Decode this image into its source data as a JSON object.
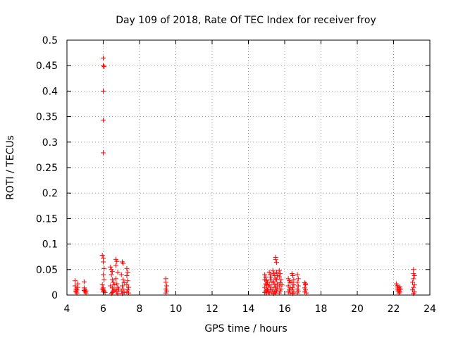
{
  "chart_data": {
    "type": "scatter",
    "title": "Day 109 of 2018, Rate Of TEC Index for receiver froy",
    "xlabel": "GPS time / hours",
    "ylabel": "ROTI / TECUs",
    "xlim": [
      4,
      24
    ],
    "ylim": [
      0,
      0.5
    ],
    "xticks": [
      4,
      6,
      8,
      10,
      12,
      14,
      16,
      18,
      20,
      22,
      24
    ],
    "xtick_labels": [
      "4",
      "6",
      "8",
      "10",
      "12",
      "14",
      "16",
      "18",
      "20",
      "22",
      "24"
    ],
    "yticks": [
      0,
      0.05,
      0.1,
      0.15,
      0.2,
      0.25,
      0.3,
      0.35,
      0.4,
      0.45,
      0.5
    ],
    "ytick_labels": [
      "0",
      "0.05",
      "0.1",
      "0.15",
      "0.2",
      "0.25",
      "0.3",
      "0.35",
      "0.4",
      "0.45",
      "0.5"
    ],
    "grid": true,
    "marker": "+",
    "color": "#ff0000",
    "series": [
      {
        "name": "ROTI",
        "points": [
          [
            4.45,
            0.028
          ],
          [
            4.45,
            0.018
          ],
          [
            4.5,
            0.012
          ],
          [
            4.5,
            0.006
          ],
          [
            4.55,
            0.01
          ],
          [
            4.55,
            0.004
          ],
          [
            4.6,
            0.015
          ],
          [
            4.6,
            0.022
          ],
          [
            4.5,
            0.008
          ],
          [
            4.95,
            0.026
          ],
          [
            4.95,
            0.014
          ],
          [
            5.0,
            0.01
          ],
          [
            5.0,
            0.006
          ],
          [
            5.05,
            0.008
          ],
          [
            5.05,
            0.004
          ],
          [
            4.95,
            0.009
          ],
          [
            6.0,
            0.465
          ],
          [
            6.0,
            0.45
          ],
          [
            6.05,
            0.448
          ],
          [
            6.0,
            0.4
          ],
          [
            6.0,
            0.343
          ],
          [
            6.0,
            0.279
          ],
          [
            5.95,
            0.078
          ],
          [
            6.0,
            0.072
          ],
          [
            6.0,
            0.065
          ],
          [
            6.05,
            0.052
          ],
          [
            6.0,
            0.04
          ],
          [
            6.05,
            0.03
          ],
          [
            5.95,
            0.02
          ],
          [
            6.0,
            0.014
          ],
          [
            6.0,
            0.01
          ],
          [
            6.05,
            0.008
          ],
          [
            6.1,
            0.005
          ],
          [
            5.95,
            0.012
          ],
          [
            6.0,
            0.006
          ],
          [
            6.4,
            0.055
          ],
          [
            6.45,
            0.05
          ],
          [
            6.5,
            0.046
          ],
          [
            6.45,
            0.04
          ],
          [
            6.5,
            0.03
          ],
          [
            6.55,
            0.025
          ],
          [
            6.4,
            0.018
          ],
          [
            6.5,
            0.014
          ],
          [
            6.6,
            0.01
          ],
          [
            6.55,
            0.008
          ],
          [
            6.5,
            0.005
          ],
          [
            6.45,
            0.003
          ],
          [
            6.6,
            0.02
          ],
          [
            6.7,
            0.07
          ],
          [
            6.75,
            0.066
          ],
          [
            6.7,
            0.058
          ],
          [
            6.8,
            0.045
          ],
          [
            6.7,
            0.032
          ],
          [
            6.75,
            0.022
          ],
          [
            6.8,
            0.015
          ],
          [
            6.7,
            0.01
          ],
          [
            6.75,
            0.006
          ],
          [
            6.8,
            0.003
          ],
          [
            6.85,
            0.012
          ],
          [
            7.05,
            0.065
          ],
          [
            7.1,
            0.062
          ],
          [
            7.0,
            0.04
          ],
          [
            7.1,
            0.03
          ],
          [
            7.15,
            0.024
          ],
          [
            7.05,
            0.018
          ],
          [
            7.1,
            0.012
          ],
          [
            7.0,
            0.008
          ],
          [
            7.15,
            0.005
          ],
          [
            7.05,
            0.003
          ],
          [
            7.3,
            0.052
          ],
          [
            7.35,
            0.045
          ],
          [
            7.3,
            0.038
          ],
          [
            7.35,
            0.028
          ],
          [
            7.3,
            0.02
          ],
          [
            7.4,
            0.015
          ],
          [
            7.35,
            0.01
          ],
          [
            7.3,
            0.006
          ],
          [
            7.4,
            0.004
          ],
          [
            9.45,
            0.032
          ],
          [
            9.45,
            0.025
          ],
          [
            9.5,
            0.018
          ],
          [
            9.45,
            0.012
          ],
          [
            9.5,
            0.008
          ],
          [
            9.45,
            0.004
          ],
          [
            14.9,
            0.04
          ],
          [
            14.95,
            0.035
          ],
          [
            14.9,
            0.03
          ],
          [
            15.0,
            0.028
          ],
          [
            15.05,
            0.025
          ],
          [
            14.95,
            0.022
          ],
          [
            15.0,
            0.02
          ],
          [
            15.1,
            0.018
          ],
          [
            14.9,
            0.015
          ],
          [
            15.0,
            0.012
          ],
          [
            15.05,
            0.01
          ],
          [
            14.95,
            0.008
          ],
          [
            15.1,
            0.006
          ],
          [
            15.0,
            0.004
          ],
          [
            14.9,
            0.005
          ],
          [
            15.15,
            0.045
          ],
          [
            15.2,
            0.04
          ],
          [
            15.25,
            0.035
          ],
          [
            15.2,
            0.03
          ],
          [
            15.3,
            0.025
          ],
          [
            15.15,
            0.02
          ],
          [
            15.25,
            0.015
          ],
          [
            15.2,
            0.01
          ],
          [
            15.3,
            0.006
          ],
          [
            15.15,
            0.004
          ],
          [
            15.35,
            0.048
          ],
          [
            15.4,
            0.042
          ],
          [
            15.45,
            0.038
          ],
          [
            15.5,
            0.032
          ],
          [
            15.4,
            0.026
          ],
          [
            15.45,
            0.02
          ],
          [
            15.5,
            0.014
          ],
          [
            15.35,
            0.01
          ],
          [
            15.45,
            0.006
          ],
          [
            15.4,
            0.003
          ],
          [
            15.5,
            0.074
          ],
          [
            15.5,
            0.07
          ],
          [
            15.55,
            0.064
          ],
          [
            15.55,
            0.045
          ],
          [
            15.6,
            0.038
          ],
          [
            15.55,
            0.03
          ],
          [
            15.6,
            0.022
          ],
          [
            15.5,
            0.016
          ],
          [
            15.6,
            0.012
          ],
          [
            15.55,
            0.008
          ],
          [
            15.5,
            0.004
          ],
          [
            15.7,
            0.048
          ],
          [
            15.75,
            0.042
          ],
          [
            15.7,
            0.036
          ],
          [
            15.8,
            0.03
          ],
          [
            15.75,
            0.024
          ],
          [
            15.7,
            0.018
          ],
          [
            15.8,
            0.012
          ],
          [
            15.75,
            0.008
          ],
          [
            15.7,
            0.004
          ],
          [
            15.85,
            0.02
          ],
          [
            16.2,
            0.032
          ],
          [
            16.25,
            0.028
          ],
          [
            16.3,
            0.024
          ],
          [
            16.2,
            0.018
          ],
          [
            16.3,
            0.014
          ],
          [
            16.25,
            0.01
          ],
          [
            16.2,
            0.006
          ],
          [
            16.3,
            0.004
          ],
          [
            16.4,
            0.042
          ],
          [
            16.45,
            0.038
          ],
          [
            16.5,
            0.03
          ],
          [
            16.4,
            0.025
          ],
          [
            16.5,
            0.02
          ],
          [
            16.45,
            0.015
          ],
          [
            16.4,
            0.01
          ],
          [
            16.5,
            0.006
          ],
          [
            16.45,
            0.003
          ],
          [
            16.7,
            0.04
          ],
          [
            16.75,
            0.032
          ],
          [
            16.7,
            0.025
          ],
          [
            16.75,
            0.018
          ],
          [
            16.7,
            0.012
          ],
          [
            16.75,
            0.008
          ],
          [
            16.7,
            0.004
          ],
          [
            17.1,
            0.024
          ],
          [
            17.15,
            0.02
          ],
          [
            17.1,
            0.014
          ],
          [
            17.15,
            0.01
          ],
          [
            17.1,
            0.006
          ],
          [
            17.2,
            0.004
          ],
          [
            17.15,
            0.022
          ],
          [
            22.15,
            0.022
          ],
          [
            22.2,
            0.018
          ],
          [
            22.25,
            0.015
          ],
          [
            22.2,
            0.012
          ],
          [
            22.3,
            0.01
          ],
          [
            22.25,
            0.008
          ],
          [
            22.35,
            0.006
          ],
          [
            22.3,
            0.004
          ],
          [
            22.4,
            0.012
          ],
          [
            22.35,
            0.016
          ],
          [
            23.1,
            0.05
          ],
          [
            23.1,
            0.042
          ],
          [
            23.15,
            0.038
          ],
          [
            23.1,
            0.032
          ],
          [
            23.05,
            0.025
          ],
          [
            23.15,
            0.02
          ],
          [
            23.1,
            0.015
          ],
          [
            23.05,
            0.01
          ],
          [
            23.15,
            0.006
          ],
          [
            23.1,
            0.003
          ]
        ]
      }
    ]
  }
}
